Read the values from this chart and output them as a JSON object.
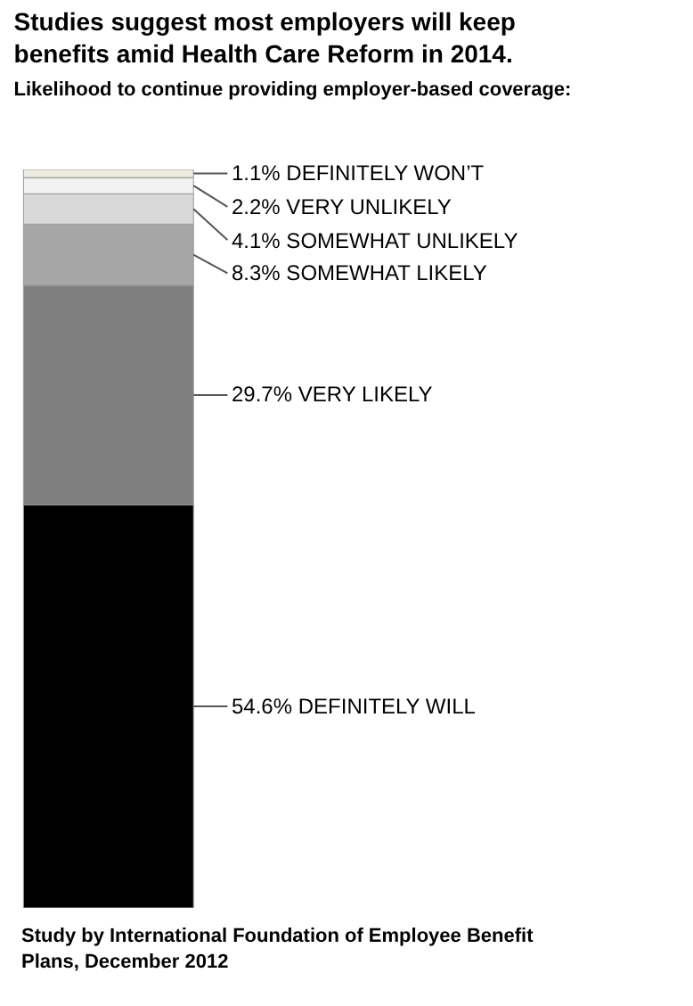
{
  "chart_data": {
    "type": "bar",
    "stacked": true,
    "title": "Studies suggest most employers will keep benefits amid Health Care Reform in 2014.",
    "subtitle": "Likelihood to continue providing employer-based coverage:",
    "categories": [
      null
    ],
    "ylim": [
      0,
      100
    ],
    "tick_labels": false,
    "series": [
      {
        "color": "#000000",
        "values": [
          54.6
        ],
        "value_labels": [
          "54.6% DEFINITELY WILL"
        ]
      },
      {
        "color": "#7f7f7f",
        "values": [
          29.7
        ],
        "value_labels": [
          "29.7% VERY LIKELY"
        ]
      },
      {
        "color": "#a6a6a6",
        "values": [
          8.3
        ],
        "value_labels": [
          "8.3% SOMEWHAT LIKELY"
        ]
      },
      {
        "color": "#d9d9d9",
        "values": [
          4.1
        ],
        "value_labels": [
          "4.1% SOMEWHAT UNLIKELY"
        ]
      },
      {
        "color": "#f2f2f2",
        "values": [
          2.2
        ],
        "value_labels": [
          "2.2% VERY UNLIKELY"
        ]
      },
      {
        "color": "#eeece1",
        "values": [
          1.1
        ],
        "value_labels": [
          "1.1% DEFINITELY WON’T"
        ]
      }
    ],
    "annotations": [
      "Study by International Foundation of Employee Benefit Plans, December 2012"
    ]
  }
}
